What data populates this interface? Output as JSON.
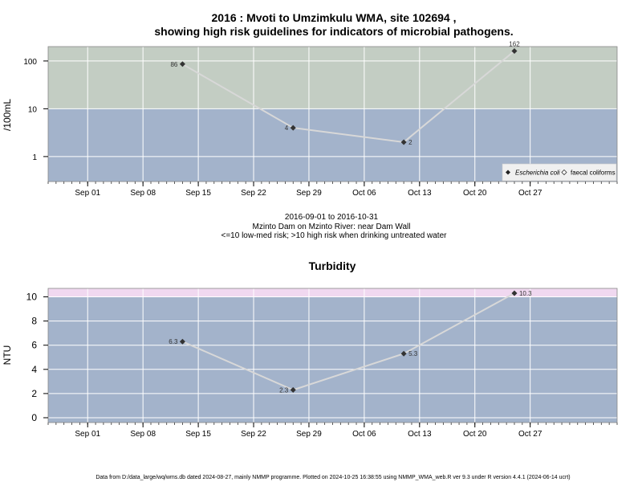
{
  "chart_data": [
    {
      "type": "line",
      "title": [
        "2016 : Mvoti to Umzimkulu WMA, site 102694 ,",
        "showing high risk guidelines for indicators of microbial pathogens."
      ],
      "ylabel": "/100mL",
      "y_scale": "log",
      "ylim": [
        0.3,
        200
      ],
      "y_ticks": [
        {
          "value": 1,
          "label": "1"
        },
        {
          "value": 10,
          "label": "10"
        },
        {
          "value": 100,
          "label": "100"
        }
      ],
      "x_type": "date",
      "x_range": [
        "2016-08-27",
        "2016-11-07"
      ],
      "x_ticks": [
        {
          "date": "2016-09-01",
          "label": "Sep 01"
        },
        {
          "date": "2016-09-08",
          "label": "Sep 08"
        },
        {
          "date": "2016-09-15",
          "label": "Sep 15"
        },
        {
          "date": "2016-09-22",
          "label": "Sep 22"
        },
        {
          "date": "2016-09-29",
          "label": "Sep 29"
        },
        {
          "date": "2016-10-06",
          "label": "Oct 06"
        },
        {
          "date": "2016-10-13",
          "label": "Oct 13"
        },
        {
          "date": "2016-10-20",
          "label": "Oct 20"
        },
        {
          "date": "2016-10-27",
          "label": "Oct 27"
        }
      ],
      "bands": [
        {
          "from": 0.3,
          "to": 10,
          "color": "#a3b3cb"
        },
        {
          "from": 10,
          "to": 200,
          "color": "#c3cdc3"
        }
      ],
      "grid": true,
      "legend_position": "bottom-right",
      "legend": [
        {
          "label": "Escherichia coli",
          "marker": "filled-diamond",
          "italic": true
        },
        {
          "label": "faecal coliforms",
          "marker": "open-diamond",
          "italic": false
        }
      ],
      "series": [
        {
          "name": "Escherichia coli",
          "line_color": "#d8d8d8",
          "marker_color": "#333333",
          "points": [
            {
              "date": "2016-09-13",
              "value": 86,
              "label": "86",
              "label_side": "left"
            },
            {
              "date": "2016-09-27",
              "value": 4,
              "label": "4",
              "label_side": "left"
            },
            {
              "date": "2016-10-11",
              "value": 2,
              "label": "2",
              "label_side": "right"
            },
            {
              "date": "2016-10-25",
              "value": 162,
              "label": "162",
              "label_side": "above"
            }
          ]
        }
      ]
    },
    {
      "type": "line",
      "title": "Turbidity",
      "ylabel": "NTU",
      "y_scale": "linear",
      "ylim": [
        -0.4,
        10.7
      ],
      "y_ticks": [
        {
          "value": 0,
          "label": "0"
        },
        {
          "value": 2,
          "label": "2"
        },
        {
          "value": 4,
          "label": "4"
        },
        {
          "value": 6,
          "label": "6"
        },
        {
          "value": 8,
          "label": "8"
        },
        {
          "value": 10,
          "label": "10"
        }
      ],
      "x_type": "date",
      "x_range": [
        "2016-08-27",
        "2016-11-07"
      ],
      "x_ticks": [
        {
          "date": "2016-09-01",
          "label": "Sep 01"
        },
        {
          "date": "2016-09-08",
          "label": "Sep 08"
        },
        {
          "date": "2016-09-15",
          "label": "Sep 15"
        },
        {
          "date": "2016-09-22",
          "label": "Sep 22"
        },
        {
          "date": "2016-09-29",
          "label": "Sep 29"
        },
        {
          "date": "2016-10-06",
          "label": "Oct 06"
        },
        {
          "date": "2016-10-13",
          "label": "Oct 13"
        },
        {
          "date": "2016-10-20",
          "label": "Oct 20"
        },
        {
          "date": "2016-10-27",
          "label": "Oct 27"
        }
      ],
      "bands": [
        {
          "from": -0.4,
          "to": 10,
          "color": "#a3b3cb"
        },
        {
          "from": 10,
          "to": 10.7,
          "color": "#f0d8f0"
        }
      ],
      "grid": true,
      "series": [
        {
          "name": "",
          "line_color": "#d8d8d8",
          "marker_color": "#333333",
          "points": [
            {
              "date": "2016-09-13",
              "value": 6.3,
              "label": "6.3",
              "label_side": "left"
            },
            {
              "date": "2016-09-27",
              "value": 2.3,
              "label": "2.3",
              "label_side": "left"
            },
            {
              "date": "2016-10-11",
              "value": 5.3,
              "label": "5.3",
              "label_side": "right"
            },
            {
              "date": "2016-10-25",
              "value": 10.3,
              "label": "10.3",
              "label_side": "right"
            }
          ]
        }
      ]
    }
  ],
  "caption": {
    "line1": "2016-09-01 to 2016-10-31",
    "line2": "Mzinto Dam on Mzinto River: near Dam Wall",
    "line3": "<=10 low-med risk; >10 high risk when drinking untreated water"
  },
  "footer": "Data from D:/data_large/wq/wms.db dated 2024-08-27, mainly NMMP programme. Plotted on 2024-10-25 16:38:55 using NMMP_WMA_web.R ver 9.3 under R version 4.4.1 (2024-06-14 ucrt)"
}
